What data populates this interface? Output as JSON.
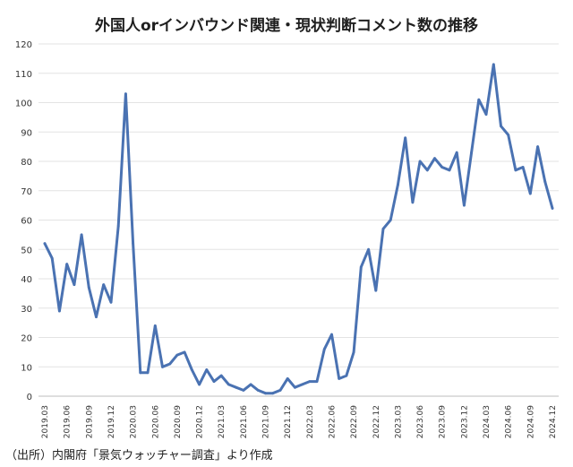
{
  "chart_data": {
    "type": "line",
    "title": "外国人orインバウンド関連・現状判断コメント数の推移",
    "ylim": [
      0,
      120
    ],
    "yticks": [
      0,
      10,
      20,
      30,
      40,
      50,
      60,
      70,
      80,
      90,
      100,
      110,
      120
    ],
    "xtick_labels": [
      "2019.03",
      "2019.06",
      "2019.09",
      "2019.12",
      "2020.03",
      "2020.06",
      "2020.09",
      "2020.12",
      "2021.03",
      "2021.06",
      "2021.09",
      "2021.12",
      "2022.03",
      "2022.06",
      "2022.09",
      "2022.12",
      "2023.03",
      "2023.06",
      "2023.09",
      "2023.12",
      "2024.03",
      "2024.06",
      "2024.09",
      "2024.12"
    ],
    "grid": true,
    "line_color": "#4A72B2",
    "series": [
      {
        "values": [
          52,
          47,
          29,
          45,
          38,
          55,
          37,
          27,
          38,
          32,
          58,
          103,
          52,
          8,
          8,
          24,
          10,
          11,
          14,
          15,
          9,
          4,
          9,
          5,
          7,
          4,
          3,
          2,
          4,
          2,
          1,
          1,
          2,
          6,
          3,
          4,
          5,
          5,
          16,
          21,
          6,
          7,
          15,
          44,
          50,
          36,
          57,
          60,
          72,
          88,
          66,
          80,
          77,
          81,
          78,
          77,
          83,
          65,
          83,
          101,
          96,
          113,
          92,
          89,
          77,
          78,
          69,
          85,
          73,
          64
        ]
      }
    ]
  },
  "source_note": "（出所）内閣府「景気ウォッチャー調査」より作成"
}
